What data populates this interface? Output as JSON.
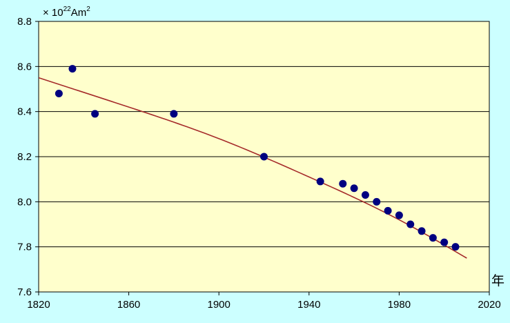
{
  "colors": {
    "background": "#CCFFFF",
    "plot_area": "#FFFFCC",
    "points": "#000080",
    "trend_line": "#A52A2A",
    "grid": "#000000"
  },
  "unit": {
    "prefix": "× 10",
    "exp": "22",
    "unit": "Am",
    "unit_exp": "2"
  },
  "chart_data": {
    "type": "scatter",
    "xlabel": "年",
    "ylabel": "",
    "xlim": [
      1820,
      2020
    ],
    "ylim": [
      7.6,
      8.8
    ],
    "x_ticks": [
      "1820",
      "1860",
      "1900",
      "1940",
      "1980",
      "2020"
    ],
    "y_ticks": [
      "7.6",
      "7.8",
      "8.0",
      "8.2",
      "8.4",
      "8.6",
      "8.8"
    ],
    "grid": "horizontal",
    "series": [
      {
        "points": [
          {
            "x": 1829,
            "y": 8.48
          },
          {
            "x": 1835,
            "y": 8.59
          },
          {
            "x": 1845,
            "y": 8.39
          },
          {
            "x": 1880,
            "y": 8.39
          },
          {
            "x": 1920,
            "y": 8.2
          },
          {
            "x": 1945,
            "y": 8.09
          },
          {
            "x": 1955,
            "y": 8.08
          },
          {
            "x": 1960,
            "y": 8.06
          },
          {
            "x": 1965,
            "y": 8.03
          },
          {
            "x": 1970,
            "y": 8.0
          },
          {
            "x": 1975,
            "y": 7.96
          },
          {
            "x": 1980,
            "y": 7.94
          },
          {
            "x": 1985,
            "y": 7.9
          },
          {
            "x": 1990,
            "y": 7.87
          },
          {
            "x": 1995,
            "y": 7.84
          },
          {
            "x": 2000,
            "y": 7.82
          },
          {
            "x": 2005,
            "y": 7.8
          }
        ]
      }
    ],
    "trendline": {
      "type": "polynomial",
      "points": [
        {
          "x": 1820,
          "y": 8.55
        },
        {
          "x": 1860,
          "y": 8.42
        },
        {
          "x": 1900,
          "y": 8.28
        },
        {
          "x": 1940,
          "y": 8.11
        },
        {
          "x": 1980,
          "y": 7.92
        },
        {
          "x": 2010,
          "y": 7.75
        }
      ]
    }
  }
}
